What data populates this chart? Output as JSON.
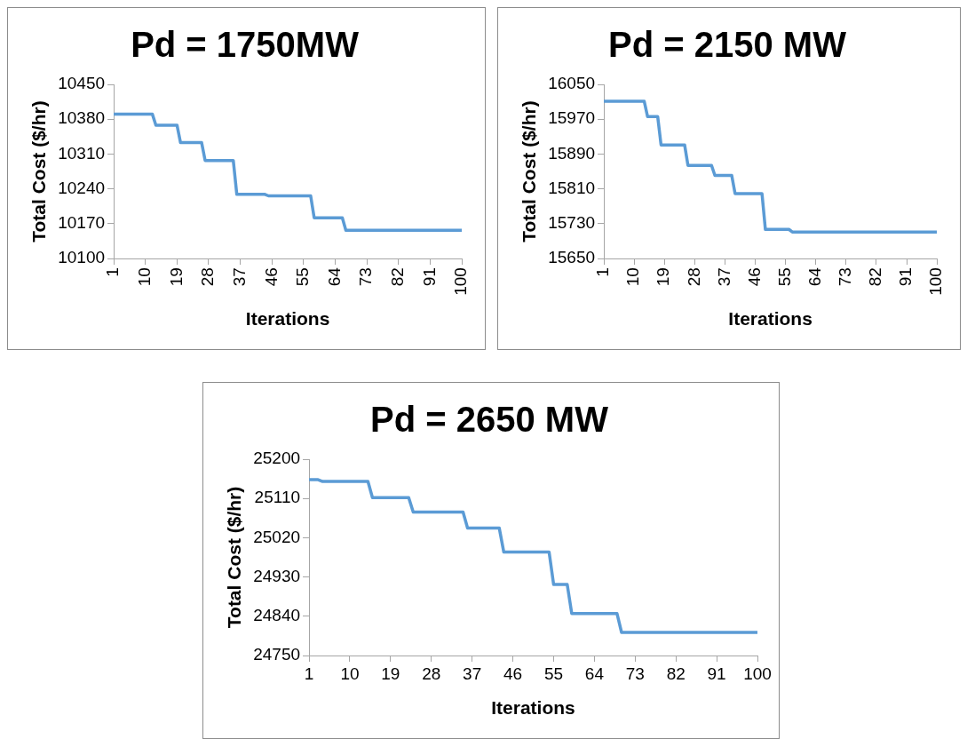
{
  "chart_data": [
    {
      "type": "line",
      "title": "Pd = 1750MW",
      "xlabel": "Iterations",
      "ylabel": "Total Cost ($/hr)",
      "x": [
        1,
        12,
        13,
        19,
        20,
        26,
        27,
        35,
        36,
        44,
        45,
        57,
        58,
        66,
        67,
        100
      ],
      "series": [
        {
          "color": "#5b9bd5",
          "values": [
            10390,
            10390,
            10368,
            10368,
            10333,
            10333,
            10297,
            10297,
            10229,
            10229,
            10226,
            10226,
            10182,
            10182,
            10157,
            10157
          ]
        }
      ],
      "xlim": [
        1,
        100
      ],
      "xticks": [
        1,
        10,
        19,
        28,
        37,
        46,
        55,
        64,
        73,
        82,
        91,
        100
      ],
      "ylim": [
        10100,
        10450
      ],
      "yticks": [
        10100,
        10170,
        10240,
        10310,
        10380,
        10450
      ],
      "grid": false,
      "legend": false,
      "marker": "none",
      "line_style": "solid"
    },
    {
      "type": "line",
      "title": "Pd = 2150 MW",
      "xlabel": "Iterations",
      "ylabel": "Total Cost ($/hr)",
      "x": [
        1,
        13,
        14,
        17,
        18,
        25,
        26,
        33,
        34,
        39,
        40,
        48,
        49,
        56,
        57,
        100
      ],
      "series": [
        {
          "color": "#5b9bd5",
          "values": [
            16011,
            16011,
            15976,
            15976,
            15911,
            15911,
            15864,
            15864,
            15841,
            15841,
            15799,
            15799,
            15717,
            15717,
            15711,
            15711
          ]
        }
      ],
      "xlim": [
        1,
        100
      ],
      "xticks": [
        1,
        10,
        19,
        28,
        37,
        46,
        55,
        64,
        73,
        82,
        91,
        100
      ],
      "ylim": [
        15650,
        16050
      ],
      "yticks": [
        15650,
        15730,
        15810,
        15890,
        15970,
        16050
      ],
      "grid": false,
      "legend": false,
      "marker": "none",
      "line_style": "solid"
    },
    {
      "type": "line",
      "title": "Pd = 2650 MW",
      "xlabel": "Iterations",
      "ylabel": "Total Cost ($/hr)",
      "x": [
        1,
        3,
        4,
        14,
        15,
        23,
        24,
        35,
        36,
        43,
        44,
        54,
        55,
        58,
        59,
        69,
        70,
        100
      ],
      "series": [
        {
          "color": "#5b9bd5",
          "values": [
            25153,
            25153,
            25149,
            25149,
            25112,
            25112,
            25079,
            25079,
            25042,
            25042,
            24987,
            24987,
            24913,
            24913,
            24846,
            24846,
            24803,
            24803
          ]
        }
      ],
      "xlim": [
        1,
        100
      ],
      "xticks": [
        1,
        10,
        19,
        28,
        37,
        46,
        55,
        64,
        73,
        82,
        91,
        100
      ],
      "ylim": [
        24750,
        25200
      ],
      "yticks": [
        24750,
        24840,
        24930,
        25020,
        25110,
        25200
      ],
      "grid": false,
      "legend": false,
      "marker": "none",
      "line_style": "solid"
    }
  ]
}
